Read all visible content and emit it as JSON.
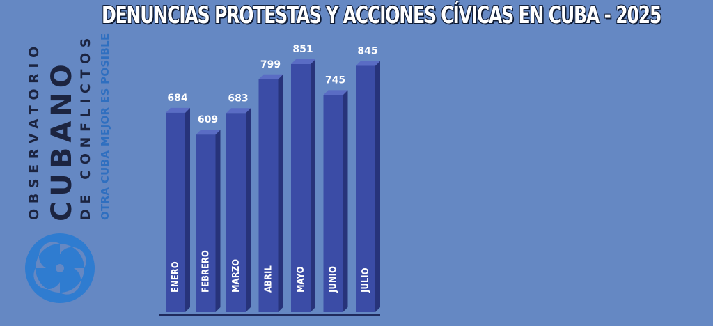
{
  "title": "DENUNCIAS PROTESTAS Y ACCIONES CÍVICAS EN CUBA - 2025",
  "logo": {
    "line1": "OBSERVATORIO",
    "line2": "CUBANO",
    "line3": "DE CONFLICTOS",
    "slogan": "OTRA CUBA MEJOR ES POSIBLE",
    "icon": "swirl-circle-icon"
  },
  "colors": {
    "background": "#6588c3",
    "bar_front": "#3b4ca6",
    "bar_side": "#27337a",
    "bar_top": "#5a6cc4"
  },
  "chart_data": {
    "type": "bar",
    "title": "DENUNCIAS PROTESTAS Y ACCIONES CÍVICAS EN CUBA - 2025",
    "categories": [
      "ENERO",
      "FEBRERO",
      "MARZO",
      "ABRIL",
      "MAYO",
      "JUNIO",
      "JULIO"
    ],
    "values": [
      684,
      609,
      683,
      799,
      851,
      745,
      845
    ],
    "value_labels": [
      "684",
      "609",
      "683",
      "799",
      "851",
      "745",
      "845"
    ],
    "xlabel": "",
    "ylabel": "",
    "grid": false
  }
}
